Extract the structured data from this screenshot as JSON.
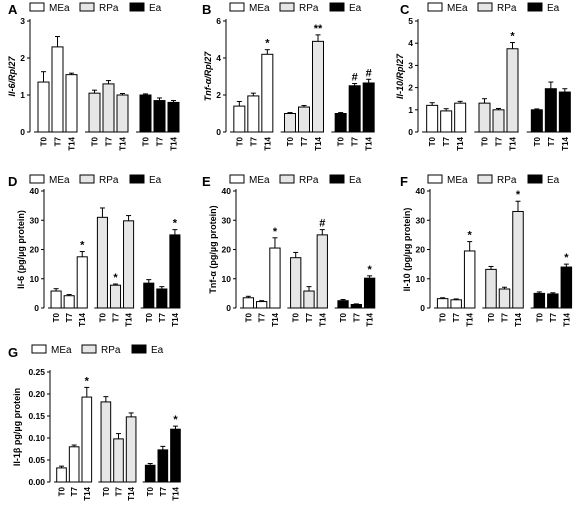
{
  "legend": {
    "series": [
      "MEa",
      "RPa",
      "Ea"
    ]
  },
  "colors": {
    "MEa": "#ffffff",
    "RPa": "#e6e6e6",
    "Ea": "#000000"
  },
  "chart_data": [
    {
      "panel": "A",
      "type": "bar",
      "ylabel": "Il-6/Rpl27",
      "ylabel_italic": true,
      "ylim": [
        0,
        3
      ],
      "yticks": [
        0,
        1,
        2,
        3
      ],
      "categories": [
        "T0",
        "T7",
        "T14"
      ],
      "series": [
        {
          "name": "MEa",
          "values": [
            1.35,
            2.3,
            1.55
          ],
          "errors": [
            0.28,
            0.28,
            0.04
          ],
          "sig": [
            "",
            "",
            ""
          ]
        },
        {
          "name": "RPa",
          "values": [
            1.05,
            1.3,
            1.0
          ],
          "errors": [
            0.08,
            0.09,
            0.04
          ],
          "sig": [
            "",
            "",
            ""
          ]
        },
        {
          "name": "Ea",
          "values": [
            1.0,
            0.85,
            0.8
          ],
          "errors": [
            0.03,
            0.07,
            0.05
          ],
          "sig": [
            "",
            "",
            ""
          ]
        }
      ]
    },
    {
      "panel": "B",
      "type": "bar",
      "ylabel": "Tnf-α/Rpl27",
      "ylabel_italic": true,
      "ylim": [
        0,
        6
      ],
      "yticks": [
        0,
        2,
        4,
        6
      ],
      "categories": [
        "T0",
        "T7",
        "T14"
      ],
      "series": [
        {
          "name": "MEa",
          "values": [
            1.4,
            1.95,
            4.2
          ],
          "errors": [
            0.25,
            0.15,
            0.25
          ],
          "sig": [
            "",
            "",
            "*"
          ]
        },
        {
          "name": "RPa",
          "values": [
            1.0,
            1.35,
            4.9
          ],
          "errors": [
            0.05,
            0.08,
            0.35
          ],
          "sig": [
            "",
            "",
            "**"
          ]
        },
        {
          "name": "Ea",
          "values": [
            1.0,
            2.5,
            2.65
          ],
          "errors": [
            0.05,
            0.12,
            0.2
          ],
          "sig": [
            "",
            "#",
            "#"
          ]
        }
      ]
    },
    {
      "panel": "C",
      "type": "bar",
      "ylabel": "Il-10/Rpl27",
      "ylabel_italic": true,
      "ylim": [
        0,
        5
      ],
      "yticks": [
        0,
        1,
        2,
        3,
        4,
        5
      ],
      "categories": [
        "T0",
        "T7",
        "T14"
      ],
      "series": [
        {
          "name": "MEa",
          "values": [
            1.2,
            0.95,
            1.3
          ],
          "errors": [
            0.12,
            0.1,
            0.08
          ],
          "sig": [
            "",
            "",
            ""
          ]
        },
        {
          "name": "RPa",
          "values": [
            1.3,
            1.0,
            3.75
          ],
          "errors": [
            0.2,
            0.06,
            0.28
          ],
          "sig": [
            "",
            "",
            "*"
          ]
        },
        {
          "name": "Ea",
          "values": [
            1.0,
            1.95,
            1.8
          ],
          "errors": [
            0.04,
            0.3,
            0.15
          ],
          "sig": [
            "",
            "",
            ""
          ]
        }
      ]
    },
    {
      "panel": "D",
      "type": "bar",
      "ylabel": "Il-6 (pg/µg protein)",
      "ylabel_italic": false,
      "ylim": [
        0,
        40
      ],
      "yticks": [
        0,
        10,
        20,
        30,
        40
      ],
      "categories": [
        "T0",
        "T7",
        "T14"
      ],
      "series": [
        {
          "name": "MEa",
          "values": [
            5.8,
            4.2,
            17.5
          ],
          "errors": [
            0.8,
            0.4,
            1.8
          ],
          "sig": [
            "",
            "",
            "*"
          ]
        },
        {
          "name": "RPa",
          "values": [
            31,
            7.8,
            29.8
          ],
          "errors": [
            3.2,
            0.4,
            1.8
          ],
          "sig": [
            "",
            "*",
            ""
          ]
        },
        {
          "name": "Ea",
          "values": [
            8.5,
            6.5,
            25
          ],
          "errors": [
            1.2,
            0.8,
            1.8
          ],
          "sig": [
            "",
            "",
            "*"
          ]
        }
      ]
    },
    {
      "panel": "E",
      "type": "bar",
      "ylabel": "Tnf-α (pg/µg protein)",
      "ylabel_italic": false,
      "ylim": [
        0,
        40
      ],
      "yticks": [
        0,
        10,
        20,
        30,
        40
      ],
      "categories": [
        "T0",
        "T7",
        "T14"
      ],
      "series": [
        {
          "name": "MEa",
          "values": [
            3.5,
            2.2,
            20.5
          ],
          "errors": [
            0.5,
            0.3,
            3.5
          ],
          "sig": [
            "",
            "",
            "*"
          ]
        },
        {
          "name": "RPa",
          "values": [
            17.2,
            5.8,
            25
          ],
          "errors": [
            1.8,
            1.5,
            1.8
          ],
          "sig": [
            "",
            "",
            "#"
          ]
        },
        {
          "name": "Ea",
          "values": [
            2.5,
            1.2,
            10.2
          ],
          "errors": [
            0.4,
            0.2,
            0.8
          ],
          "sig": [
            "",
            "",
            "*"
          ]
        }
      ]
    },
    {
      "panel": "F",
      "type": "bar",
      "ylabel": "Il-10 (pg/µg protein)",
      "ylabel_italic": false,
      "ylim": [
        0,
        40
      ],
      "yticks": [
        0,
        10,
        20,
        30,
        40
      ],
      "categories": [
        "T0",
        "T7",
        "T14"
      ],
      "series": [
        {
          "name": "MEa",
          "values": [
            3.2,
            2.8,
            19.5
          ],
          "errors": [
            0.3,
            0.3,
            3.2
          ],
          "sig": [
            "",
            "",
            "*"
          ]
        },
        {
          "name": "RPa",
          "values": [
            13.2,
            6.5,
            33
          ],
          "errors": [
            1.0,
            0.6,
            3.5
          ],
          "sig": [
            "",
            "",
            "*"
          ]
        },
        {
          "name": "Ea",
          "values": [
            5.0,
            4.8,
            14
          ],
          "errors": [
            0.5,
            0.4,
            1.0
          ],
          "sig": [
            "",
            "",
            "*"
          ]
        }
      ]
    },
    {
      "panel": "G",
      "type": "bar",
      "ylabel": "Il-1β pg/µg protein",
      "ylabel_italic": false,
      "ylim": [
        0,
        0.25
      ],
      "yticks": [
        "0.00",
        "0.05",
        "0.10",
        "0.15",
        "0.20",
        "0.25"
      ],
      "categories": [
        "T0",
        "T7",
        "T14"
      ],
      "series": [
        {
          "name": "MEa",
          "values": [
            0.032,
            0.08,
            0.193
          ],
          "errors": [
            0.004,
            0.004,
            0.022
          ],
          "sig": [
            "",
            "",
            "*"
          ]
        },
        {
          "name": "RPa",
          "values": [
            0.182,
            0.098,
            0.148
          ],
          "errors": [
            0.012,
            0.012,
            0.009
          ],
          "sig": [
            "",
            "",
            ""
          ]
        },
        {
          "name": "Ea",
          "values": [
            0.038,
            0.073,
            0.12
          ],
          "errors": [
            0.004,
            0.008,
            0.007
          ],
          "sig": [
            "",
            "",
            "*"
          ]
        }
      ]
    }
  ]
}
